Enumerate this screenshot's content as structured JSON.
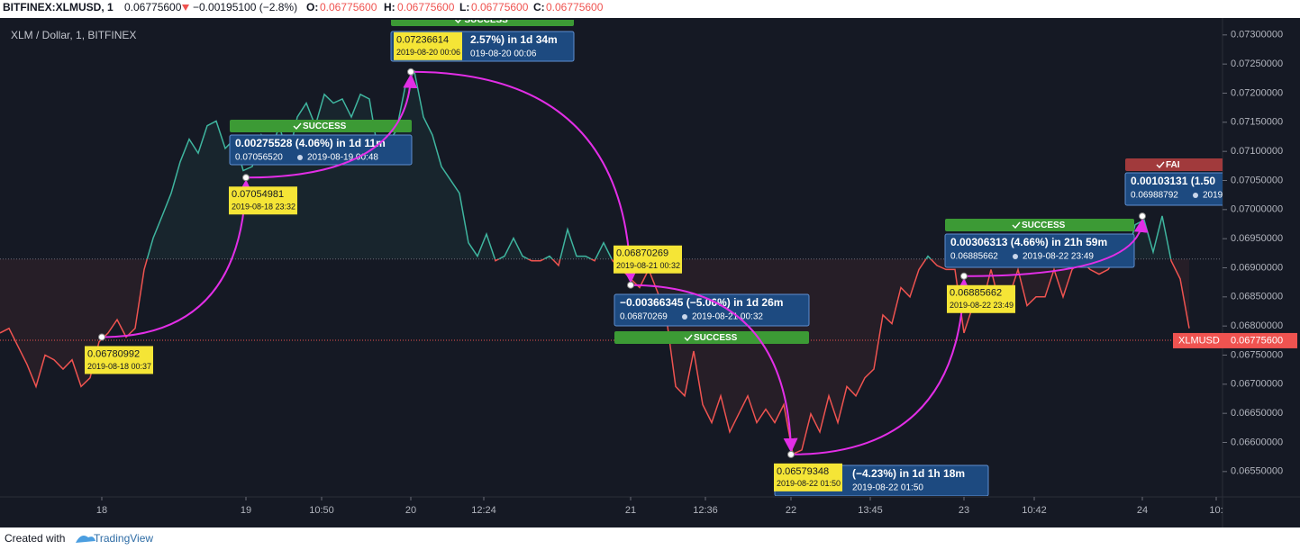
{
  "chart_data": {
    "type": "line",
    "header": {
      "symbol": "BITFINEX:XLMUSD, 1",
      "last": "0.06775600",
      "change": "−0.00195100 (−2.8%)",
      "o_label": "O:",
      "o": "0.06775600",
      "h_label": "H:",
      "h": "0.06775600",
      "l_label": "L:",
      "l": "0.06775600",
      "c_label": "C:",
      "c": "0.06775600"
    },
    "title": "XLM / Dollar, 1, BITFINEX",
    "xlim": [
      0,
      271
    ],
    "xticks": [
      {
        "value": 22.6,
        "label": "18"
      },
      {
        "value": 54.6,
        "label": "19"
      },
      {
        "value": 71.4,
        "label": "10:50"
      },
      {
        "value": 91.2,
        "label": "20"
      },
      {
        "value": 107.4,
        "label": "12:24"
      },
      {
        "value": 140,
        "label": "21"
      },
      {
        "value": 156.6,
        "label": "12:36"
      },
      {
        "value": 175.6,
        "label": "22"
      },
      {
        "value": 193.2,
        "label": "13:45"
      },
      {
        "value": 214,
        "label": "23"
      },
      {
        "value": 229.6,
        "label": "10:42"
      },
      {
        "value": 253.6,
        "label": "24"
      },
      {
        "value": 270,
        "label": "10:"
      }
    ],
    "ylim": [
      0.06508,
      0.07326
    ],
    "yticks": [
      {
        "value": 0.0655,
        "label": "0.06550000"
      },
      {
        "value": 0.066,
        "label": "0.06600000"
      },
      {
        "value": 0.0665,
        "label": "0.06650000"
      },
      {
        "value": 0.067,
        "label": "0.06700000"
      },
      {
        "value": 0.0675,
        "label": "0.06750000"
      },
      {
        "value": 0.068,
        "label": "0.06800000"
      },
      {
        "value": 0.0685,
        "label": "0.06850000"
      },
      {
        "value": 0.069,
        "label": "0.06900000"
      },
      {
        "value": 0.0695,
        "label": "0.06950000"
      },
      {
        "value": 0.07,
        "label": "0.07000000"
      },
      {
        "value": 0.0705,
        "label": "0.07050000"
      },
      {
        "value": 0.071,
        "label": "0.07100000"
      },
      {
        "value": 0.0715,
        "label": "0.07150000"
      },
      {
        "value": 0.072,
        "label": "0.07200000"
      },
      {
        "value": 0.0725,
        "label": "0.07250000"
      },
      {
        "value": 0.073,
        "label": "0.07300000"
      }
    ],
    "baseline": 0.06915,
    "color_above": "#3fb59f",
    "color_below": "#ef5350",
    "current_price": {
      "value": 0.067756,
      "label": "0.06775600"
    },
    "current_symbol": "XLMUSD",
    "x": [
      0,
      2,
      4,
      6,
      8,
      10,
      12,
      14,
      16,
      18,
      20,
      22,
      24,
      26,
      28,
      30,
      32,
      34,
      36,
      38,
      40,
      42,
      44,
      46,
      48,
      50,
      52,
      54,
      56,
      58,
      60,
      62,
      64,
      66,
      68,
      70,
      72,
      74,
      76,
      78,
      80,
      82,
      84,
      86,
      88,
      90,
      92,
      94,
      96,
      98,
      100,
      102,
      104,
      106,
      108,
      110,
      112,
      114,
      116,
      118,
      120,
      122,
      124,
      126,
      128,
      130,
      132,
      134,
      136,
      138,
      140,
      142,
      144,
      146,
      148,
      150,
      152,
      154,
      156,
      158,
      160,
      162,
      164,
      166,
      168,
      170,
      172,
      174,
      176,
      178,
      180,
      182,
      184,
      186,
      188,
      190,
      192,
      194,
      196,
      198,
      200,
      202,
      204,
      206,
      208,
      210,
      212,
      214,
      216,
      218,
      220,
      222,
      224,
      226,
      228,
      230,
      232,
      234,
      236,
      238,
      240,
      242,
      244,
      246,
      248,
      250,
      252,
      254,
      256,
      258,
      260,
      262,
      264
    ],
    "values": [
      0.06788,
      0.06796,
      0.06765,
      0.06734,
      0.06696,
      0.0675,
      0.06742,
      0.06726,
      0.06742,
      0.06696,
      0.06711,
      0.06773,
      0.06788,
      0.06811,
      0.06781,
      0.06796,
      0.06897,
      0.06951,
      0.06989,
      0.07028,
      0.07082,
      0.07121,
      0.07097,
      0.07144,
      0.07152,
      0.07105,
      0.07121,
      0.07067,
      0.07074,
      0.07128,
      0.07097,
      0.07144,
      0.0709,
      0.07159,
      0.07183,
      0.07144,
      0.07198,
      0.07183,
      0.0719,
      0.07159,
      0.07198,
      0.0719,
      0.07097,
      0.07113,
      0.07136,
      0.07213,
      0.07237,
      0.07159,
      0.07128,
      0.07074,
      0.07051,
      0.07028,
      0.06943,
      0.0692,
      0.06958,
      0.06912,
      0.0692,
      0.06951,
      0.0692,
      0.06912,
      0.06912,
      0.0692,
      0.06904,
      0.06966,
      0.0692,
      0.0692,
      0.06912,
      0.06943,
      0.06912,
      0.06897,
      0.06881,
      0.06866,
      0.06897,
      0.06858,
      0.06811,
      0.06696,
      0.0668,
      0.06757,
      0.06665,
      0.06634,
      0.0668,
      0.06618,
      0.06649,
      0.0668,
      0.06634,
      0.06657,
      0.06634,
      0.06665,
      0.0658,
      0.06587,
      0.06649,
      0.06618,
      0.0668,
      0.06634,
      0.06696,
      0.0668,
      0.06711,
      0.06726,
      0.06819,
      0.06804,
      0.06866,
      0.0685,
      0.06897,
      0.0692,
      0.06904,
      0.06897,
      0.06897,
      0.06788,
      0.06835,
      0.06835,
      0.06897,
      0.06835,
      0.0685,
      0.06897,
      0.06835,
      0.0685,
      0.0685,
      0.06897,
      0.0685,
      0.06897,
      0.06912,
      0.06897,
      0.06889,
      0.06897,
      0.0692,
      0.06912,
      0.06974,
      0.06982,
      0.06927,
      0.06989,
      0.06912,
      0.06881,
      0.06796
    ],
    "points": [
      {
        "x": 22.6,
        "price": 0.06780992,
        "price_label": "0.06780992",
        "date": "2019-08-18 00:37"
      },
      {
        "x": 54.6,
        "price": 0.07054981,
        "price_label": "0.07054981",
        "date": "2019-08-18 23:32"
      },
      {
        "x": 91.2,
        "price": 0.07236614,
        "price_label": "0.07236614",
        "date": "2019-08-20 00:06"
      },
      {
        "x": 140,
        "price": 0.06870269,
        "price_label": "0.06870269",
        "date": "2019-08-21 00:32"
      },
      {
        "x": 175.6,
        "price": 0.06579348,
        "price_label": "0.06579348",
        "date": "2019-08-22 01:50"
      },
      {
        "x": 214,
        "price": 0.06885662,
        "price_label": "0.06885662",
        "date": "2019-08-22 23:49"
      },
      {
        "x": 253.6,
        "price": 0.06988792
      }
    ],
    "arrow_color": "#e22ee6",
    "measures": [
      {
        "status": "SUCCESS",
        "change": "0.00275528 (4.06%) in 1d 11m",
        "price": "0.07056520",
        "date": "2019-08-19  00:48"
      },
      {
        "status": "SUCCESS",
        "change": "2.57%) in 1d 34m",
        "date": "019-08-20  00:06"
      },
      {
        "status": "SUCCESS",
        "change": "−0.00366345 (−5.06%) in 1d 26m",
        "price": "0.06870269",
        "date": "2019-08-21  00:32"
      },
      {
        "change": "(−4.23%) in 1d 1h 18m",
        "date": "2019-08-22  01:50"
      },
      {
        "status": "SUCCESS",
        "change": "0.00306313 (4.66%) in 21h 59m",
        "price": "0.06885662",
        "date": "2019-08-22  23:49"
      },
      {
        "status": "FAI",
        "change": "0.00103131 (1.50",
        "price": "0.06988792",
        "date": "2019-"
      }
    ],
    "footer": {
      "created": "Created with",
      "brand": "TradingView"
    }
  }
}
